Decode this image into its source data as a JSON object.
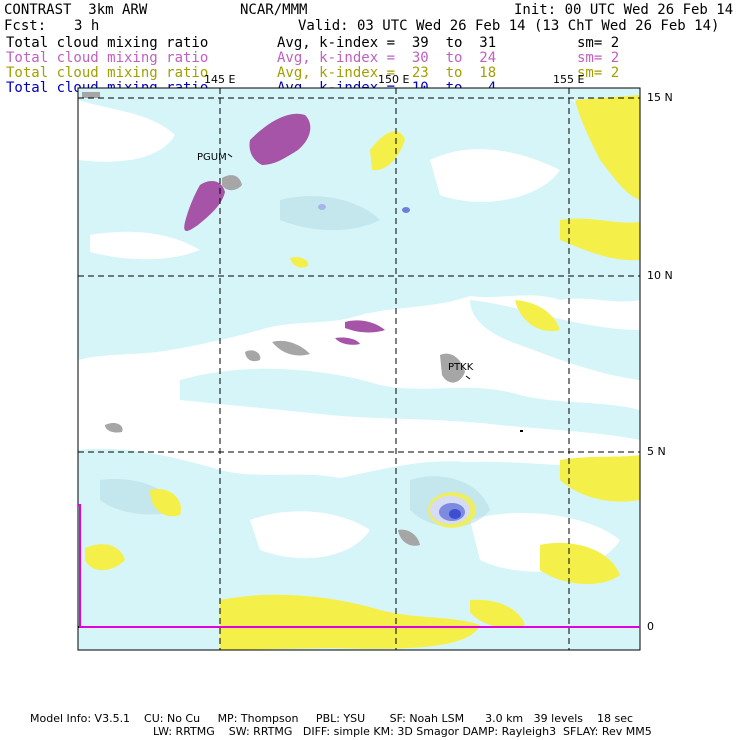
{
  "header": {
    "title": "CONTRAST  3km ARW",
    "center": "NCAR/MMM",
    "init": "Init: 00 UTC Wed 26 Feb 14",
    "fcst_label": "Fcst:",
    "fcst_value": "3 h",
    "valid": "Valid: 03 UTC Wed 26 Feb 14 (13 ChT Wed 26 Feb 14)"
  },
  "legend": [
    {
      "field": "Total cloud mixing ratio",
      "stat": "Avg, k-index =  39  to  31",
      "sm": "sm= 2",
      "color": "#000000"
    },
    {
      "field": "Total cloud mixing ratio",
      "stat": "Avg, k-index =  30  to  24",
      "sm": "sm= 2",
      "color": "#c060c0"
    },
    {
      "field": "Total cloud mixing ratio",
      "stat": "Avg, k-index =  23  to  18",
      "sm": "sm= 2",
      "color": "#a0a000"
    },
    {
      "field": "Total cloud mixing ratio",
      "stat": "Avg, k-index =  10  to   4",
      "sm": "",
      "color": "#0000c0"
    }
  ],
  "map": {
    "lon_labels": [
      "145 E",
      "150 E",
      "155 E"
    ],
    "lat_labels": [
      "15 N",
      "10 N",
      "5 N",
      "0"
    ],
    "stations": [
      "PGUM",
      "PTKK"
    ],
    "colors": {
      "low_cloud": "#d6f5f8",
      "mid_cloud": "#b7dde6",
      "purple_cloud": "#a654a8",
      "yellow_cloud": "#f5ef4a",
      "land": "#a6a6a6",
      "blue_core": "#3c4fd0",
      "frame": "#000000",
      "magenta_line": "#e000e0"
    }
  },
  "footer": {
    "line1": "Model Info: V3.5.1    CU: No Cu     MP: Thompson     PBL: YSU       SF: Noah LSM      3.0 km   39 levels    18 sec",
    "line2": "LW: RRTMG    SW: RRTMG   DIFF: simple KM: 3D Smagor DAMP: Rayleigh3  SFLAY: Rev MM5"
  }
}
